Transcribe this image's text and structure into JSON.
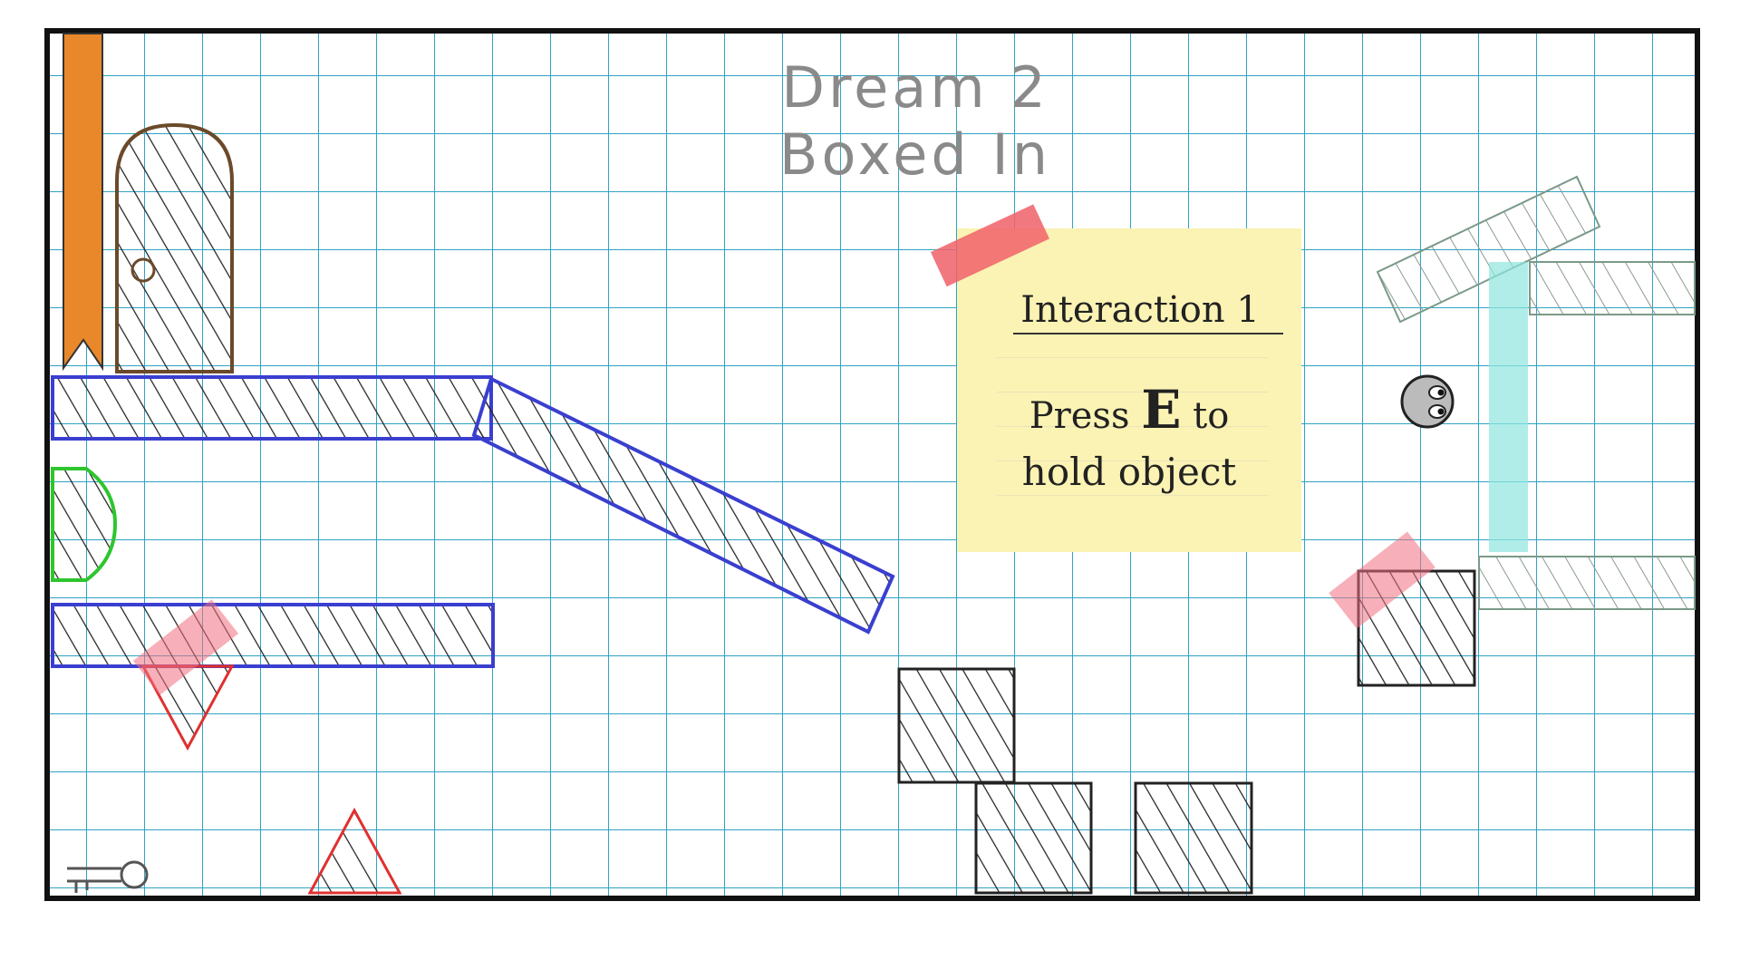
{
  "title": {
    "line1": "Dream 2",
    "line2": "Boxed In"
  },
  "note": {
    "heading": "Interaction 1",
    "press": "Press",
    "key": "E",
    "to": "to",
    "line2": "hold object"
  }
}
